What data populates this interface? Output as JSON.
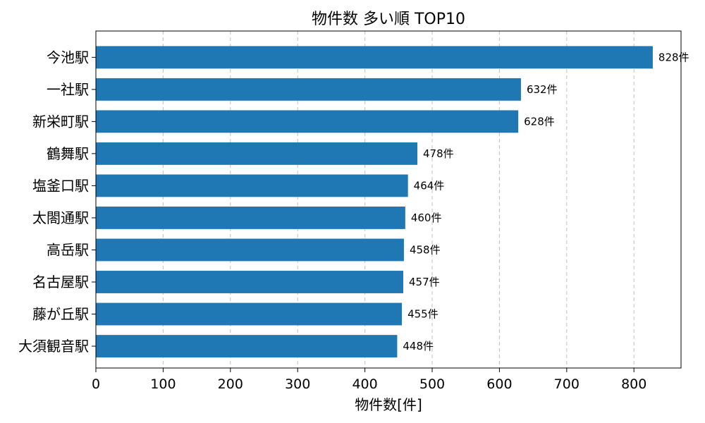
{
  "chart_data": {
    "type": "bar",
    "orientation": "horizontal",
    "title": "物件数 多い順 TOP10",
    "xlabel": "物件数[件]",
    "ylabel": "",
    "categories": [
      "今池駅",
      "一社駅",
      "新栄町駅",
      "鶴舞駅",
      "塩釜口駅",
      "太閤通駅",
      "高岳駅",
      "名古屋駅",
      "藤が丘駅",
      "大須観音駅"
    ],
    "values": [
      828,
      632,
      628,
      478,
      464,
      460,
      458,
      457,
      455,
      448
    ],
    "value_labels": [
      "828件",
      "632件",
      "628件",
      "478件",
      "464件",
      "460件",
      "458件",
      "457件",
      "455件",
      "448件"
    ],
    "xlim": [
      0,
      870
    ],
    "xticks": [
      0,
      100,
      200,
      300,
      400,
      500,
      600,
      700,
      800
    ],
    "grid": {
      "x": true,
      "y": false,
      "style": "dashed"
    },
    "bar_color": "#1f77b4",
    "legend": "none"
  }
}
